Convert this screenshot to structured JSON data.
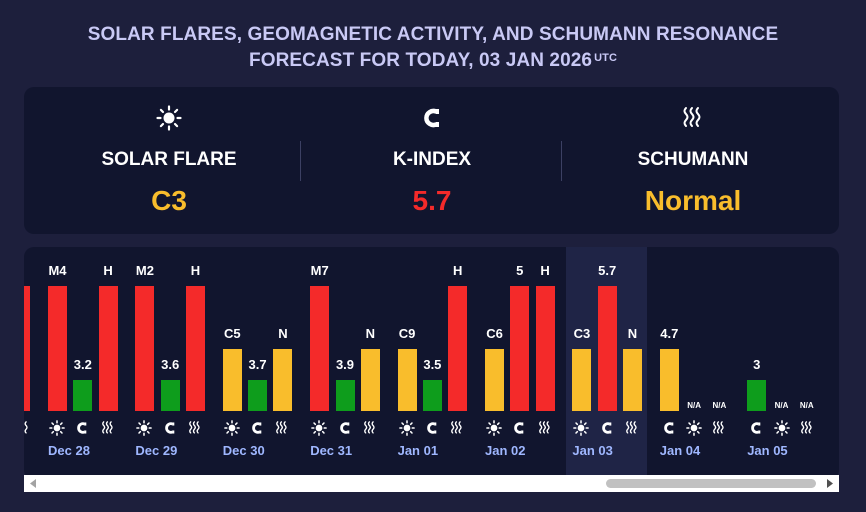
{
  "title": {
    "line1": "SOLAR FLARES, GEOMAGNETIC ACTIVITY, AND SCHUMANN RESONANCE",
    "line2": "FORECAST FOR TODAY, 03 JAN 2026",
    "utc": "UTC"
  },
  "summary": {
    "solar": {
      "label": "SOLAR FLARE",
      "value": "C3",
      "color": "#f9bd2c",
      "icon": "sun-icon"
    },
    "kindex": {
      "label": "K-INDEX",
      "value": "5.7",
      "color": "#f42a2a",
      "icon": "magnet-icon"
    },
    "schumann": {
      "label": "SCHUMANN",
      "value": "Normal",
      "color": "#f9bd2c",
      "icon": "waves-icon"
    }
  },
  "colors": {
    "red": "#f42a2a",
    "yellow": "#f9bd2c",
    "green": "#0e9d1c",
    "date": "#9fb7ff"
  },
  "chart_data": {
    "type": "bar",
    "title": "",
    "series_names": [
      "Solar flare",
      "K-index",
      "Schumann"
    ],
    "days": [
      {
        "date": "Dec 28",
        "bars": [
          {
            "label": "M4",
            "level": 3,
            "color": "red"
          },
          {
            "label": "3.2",
            "level": 1,
            "color": "green"
          },
          {
            "label": "H",
            "level": 3,
            "color": "red"
          }
        ]
      },
      {
        "date": "Dec 29",
        "bars": [
          {
            "label": "M2",
            "level": 3,
            "color": "red"
          },
          {
            "label": "3.6",
            "level": 1,
            "color": "green"
          },
          {
            "label": "H",
            "level": 3,
            "color": "red"
          }
        ]
      },
      {
        "date": "Dec 30",
        "bars": [
          {
            "label": "C5",
            "level": 2,
            "color": "yellow"
          },
          {
            "label": "3.7",
            "level": 1,
            "color": "green"
          },
          {
            "label": "N",
            "level": 2,
            "color": "yellow"
          }
        ]
      },
      {
        "date": "Dec 31",
        "bars": [
          {
            "label": "M7",
            "level": 3,
            "color": "red"
          },
          {
            "label": "3.9",
            "level": 1,
            "color": "green"
          },
          {
            "label": "N",
            "level": 2,
            "color": "yellow"
          }
        ]
      },
      {
        "date": "Jan 01",
        "bars": [
          {
            "label": "C9",
            "level": 2,
            "color": "yellow"
          },
          {
            "label": "3.5",
            "level": 1,
            "color": "green"
          },
          {
            "label": "H",
            "level": 3,
            "color": "red"
          }
        ]
      },
      {
        "date": "Jan 02",
        "bars": [
          {
            "label": "C6",
            "level": 2,
            "color": "yellow"
          },
          {
            "label": "5",
            "level": 3,
            "color": "red"
          },
          {
            "label": "H",
            "level": 3,
            "color": "red"
          }
        ]
      },
      {
        "date": "Jan 03",
        "today": true,
        "bars": [
          {
            "label": "C3",
            "level": 2,
            "color": "yellow"
          },
          {
            "label": "5.7",
            "level": 3,
            "color": "red"
          },
          {
            "label": "N",
            "level": 2,
            "color": "yellow"
          }
        ]
      },
      {
        "date": "Jan 04",
        "order": "kindex-first",
        "bars": [
          {
            "label": "4.7",
            "level": 2,
            "color": "yellow"
          },
          {
            "label": "N/A",
            "level": 0,
            "color": ""
          },
          {
            "label": "N/A",
            "level": 0,
            "color": ""
          }
        ]
      },
      {
        "date": "Jan 05",
        "order": "kindex-first",
        "bars": [
          {
            "label": "3",
            "level": 1,
            "color": "green"
          },
          {
            "label": "N/A",
            "level": 0,
            "color": ""
          },
          {
            "label": "N/A",
            "level": 0,
            "color": ""
          }
        ]
      }
    ]
  }
}
